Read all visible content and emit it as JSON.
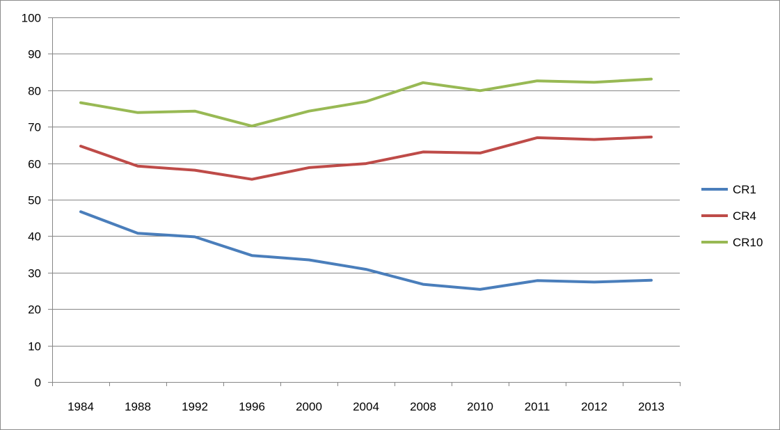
{
  "chart_data": {
    "type": "line",
    "categories": [
      "1984",
      "1988",
      "1992",
      "1996",
      "2000",
      "2004",
      "2008",
      "2010",
      "2011",
      "2012",
      "2013"
    ],
    "series": [
      {
        "name": "CR1",
        "color": "#4a7ebb",
        "values": [
          46.7,
          40.8,
          39.8,
          34.7,
          33.5,
          30.9,
          26.8,
          25.4,
          27.8,
          27.4,
          27.9
        ]
      },
      {
        "name": "CR4",
        "color": "#be4b48",
        "values": [
          64.7,
          59.2,
          58.1,
          55.6,
          58.8,
          59.9,
          63.1,
          62.8,
          67.0,
          66.5,
          67.2
        ]
      },
      {
        "name": "CR10",
        "color": "#98b954",
        "values": [
          76.6,
          73.9,
          74.3,
          70.2,
          74.3,
          76.9,
          82.1,
          79.9,
          82.6,
          82.2,
          83.1
        ]
      }
    ],
    "ylim": [
      0,
      100
    ],
    "yticks": [
      "0",
      "10",
      "20",
      "30",
      "40",
      "50",
      "60",
      "70",
      "80",
      "90",
      "100"
    ],
    "grid": true,
    "legend_position": "right"
  }
}
